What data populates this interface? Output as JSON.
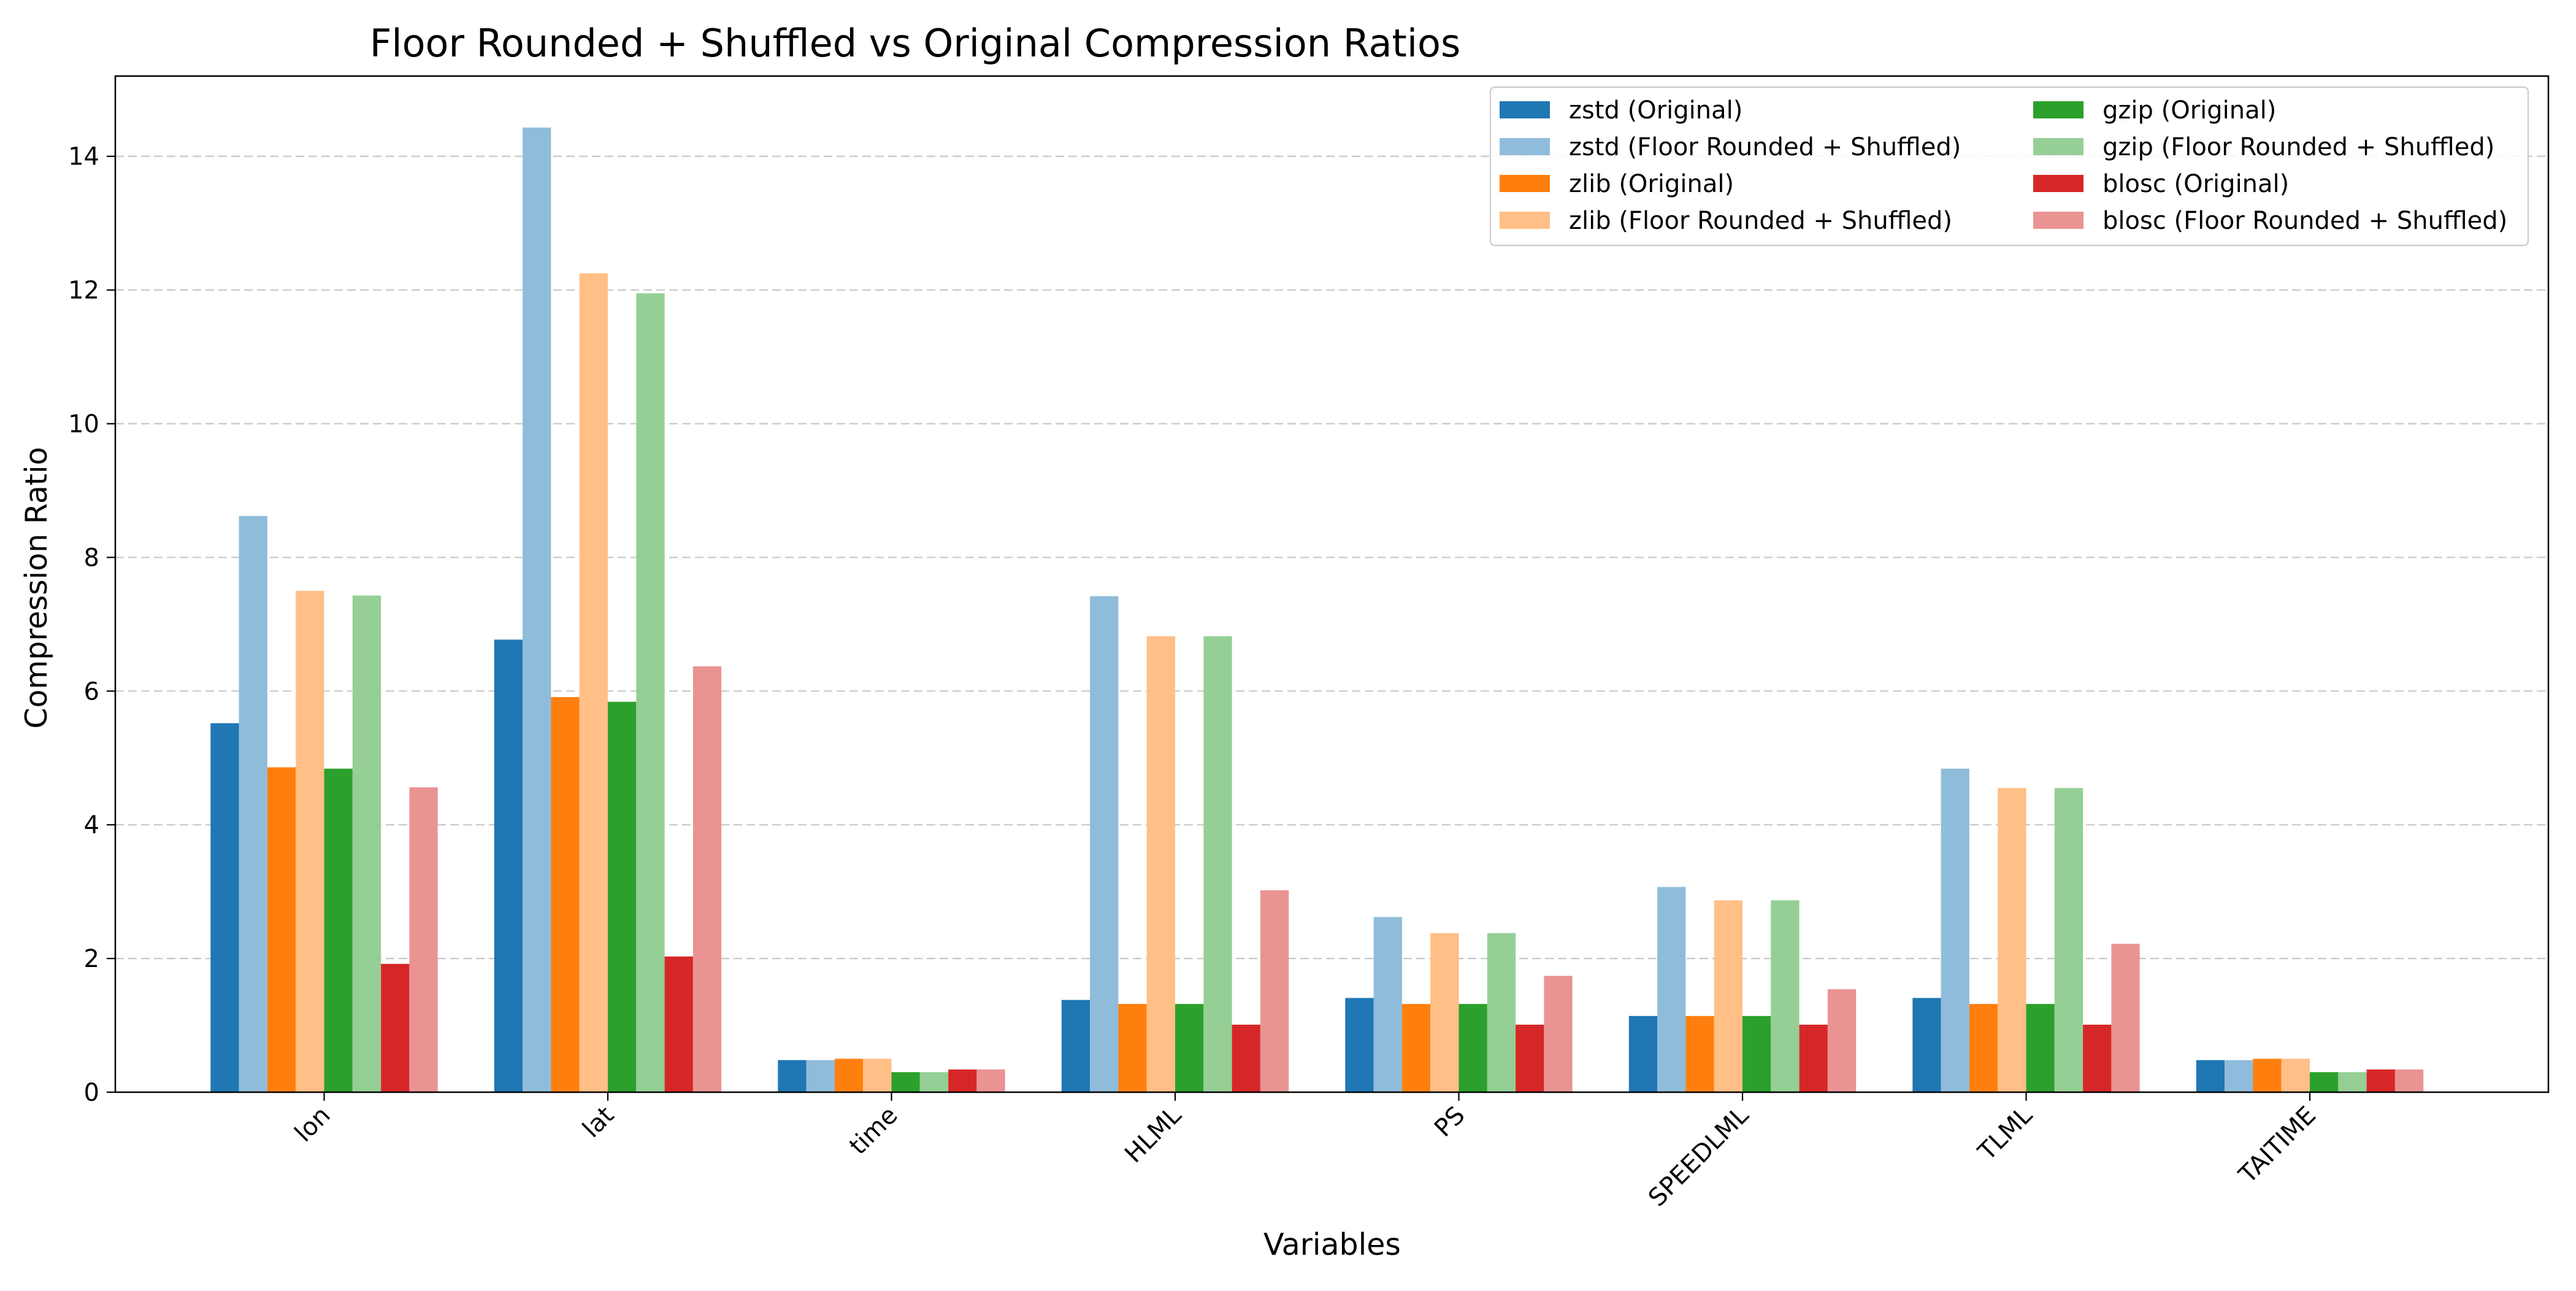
{
  "chart_data": {
    "type": "bar",
    "title": "Floor Rounded + Shuffled vs Original Compression Ratios",
    "xlabel": "Variables",
    "ylabel": "Compression Ratio",
    "ylim": [
      0,
      15.2
    ],
    "yticks": [
      0,
      2,
      4,
      6,
      8,
      10,
      12,
      14
    ],
    "grid": "y-dashed",
    "legend_position": "top-right",
    "legend_columns": 2,
    "categories": [
      "lon",
      "lat",
      "time",
      "HLML",
      "PS",
      "SPEEDLML",
      "TLML",
      "TAITIME"
    ],
    "series": [
      {
        "name": "zstd (Original)",
        "color": "#1f77b4",
        "values": [
          5.52,
          6.77,
          0.48,
          1.38,
          1.41,
          1.14,
          1.41,
          0.48
        ]
      },
      {
        "name": "zstd (Floor Rounded + Shuffled)",
        "color": "#90bcdb",
        "values": [
          8.62,
          14.43,
          0.48,
          7.42,
          2.62,
          3.07,
          4.84,
          0.48
        ]
      },
      {
        "name": "zlib (Original)",
        "color": "#ff7f0e",
        "values": [
          4.86,
          5.91,
          0.5,
          1.32,
          1.32,
          1.14,
          1.32,
          0.5
        ]
      },
      {
        "name": "zlib (Floor Rounded + Shuffled)",
        "color": "#ffbf86",
        "values": [
          7.5,
          12.25,
          0.5,
          6.82,
          2.38,
          2.87,
          4.55,
          0.5
        ]
      },
      {
        "name": "gzip (Original)",
        "color": "#2ca02c",
        "values": [
          4.84,
          5.84,
          0.3,
          1.32,
          1.32,
          1.14,
          1.32,
          0.3
        ]
      },
      {
        "name": "gzip (Floor Rounded + Shuffled)",
        "color": "#95cf95",
        "values": [
          7.43,
          11.95,
          0.3,
          6.82,
          2.38,
          2.87,
          4.55,
          0.3
        ]
      },
      {
        "name": "blosc (Original)",
        "color": "#d62728",
        "values": [
          1.92,
          2.03,
          0.34,
          1.01,
          1.01,
          1.01,
          1.01,
          0.34
        ]
      },
      {
        "name": "blosc (Floor Rounded + Shuffled)",
        "color": "#ea9393",
        "values": [
          4.56,
          6.37,
          0.34,
          3.02,
          1.74,
          1.54,
          2.22,
          0.34
        ]
      }
    ]
  }
}
